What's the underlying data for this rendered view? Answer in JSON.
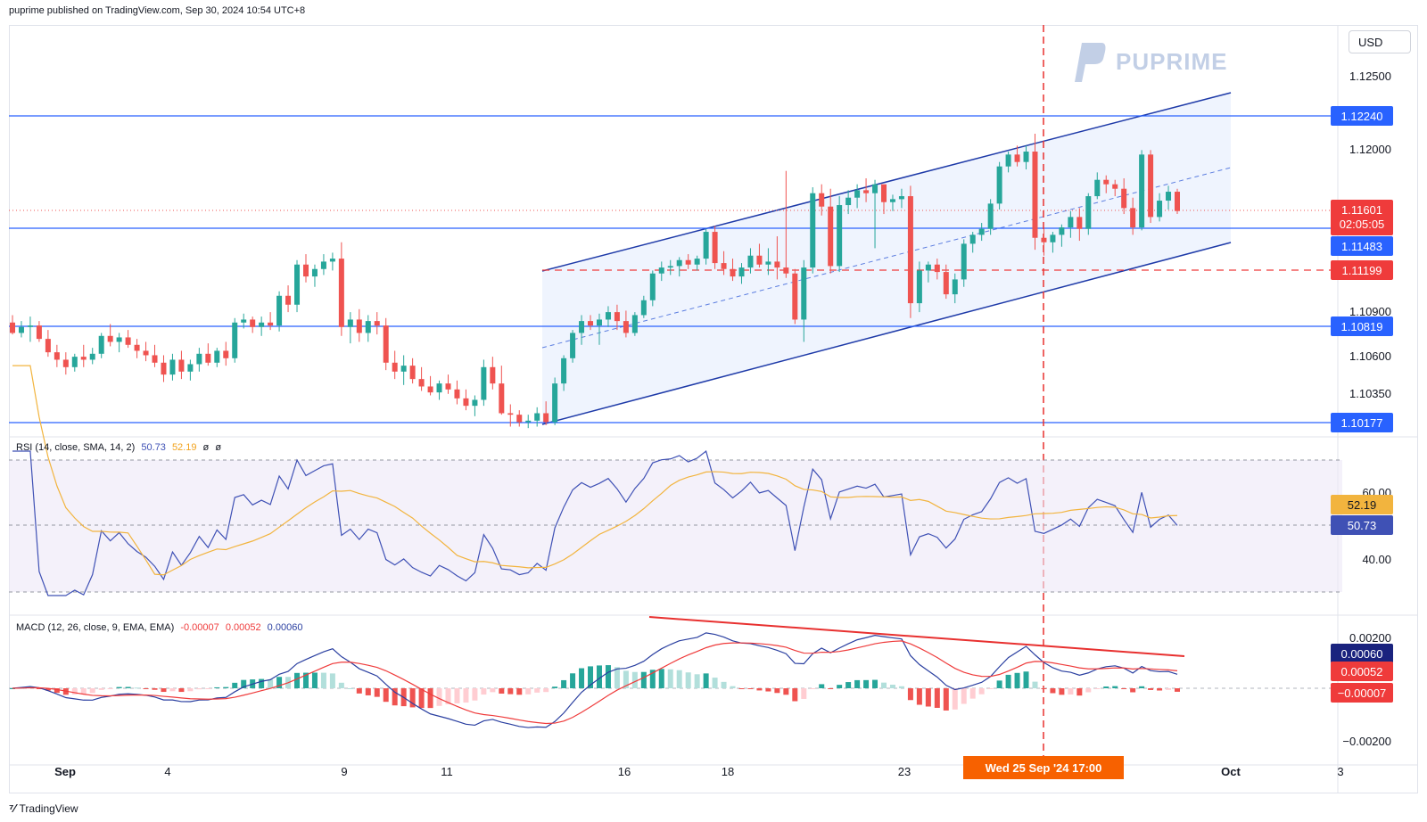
{
  "header": "puprime published on TradingView.com, Sep 30, 2024 10:54 UTC+8",
  "currency": "USD",
  "watermark": "PUPRIME",
  "footer": "TradingView",
  "price_axis": [
    "1.12500",
    "1.12000",
    "1.10900",
    "1.10600",
    "1.10350"
  ],
  "price_tags": {
    "r1": "1.12240",
    "last_price": "1.11601",
    "countdown": "02:05:05",
    "r2": "1.11483",
    "dashed": "1.11199",
    "s1": "1.10819",
    "s2": "1.10177"
  },
  "rsi": {
    "label": "RSI (14, close, SMA, 14, 2)",
    "v1": "50.73",
    "v2": "52.19",
    "v3": "ø",
    "v4": "ø",
    "axis": [
      "60.00",
      "40.00"
    ],
    "tag_sma": "52.19",
    "tag_rsi": "50.73"
  },
  "macd": {
    "label": "MACD (12, 26, close, 9, EMA, EMA)",
    "v1": "-0.00007",
    "v2": "0.00052",
    "v3": "0.00060",
    "axis": [
      "0.00200",
      "−0.00200"
    ],
    "tag_macd": "0.00060",
    "tag_signal": "0.00052",
    "tag_hist": "−0.00007"
  },
  "x_axis": [
    "Sep",
    "4",
    "9",
    "11",
    "16",
    "18",
    "23",
    "Oct",
    "3"
  ],
  "time_tag": "Wed 25 Sep '24   17:00",
  "colors": {
    "up": "#26a69a",
    "down": "#ef5350",
    "level": "#2962ff",
    "channel": "#1e3aa8",
    "orange": "#f76100",
    "rsi": "#3f51b5",
    "rsi_sma": "#f2b43e"
  },
  "chart_data": {
    "type": "candlestick",
    "symbol_currency": "USD",
    "horizontal_levels": [
      1.1224,
      1.11483,
      1.10819,
      1.10177
    ],
    "dashed_level": 1.11199,
    "last_price": 1.11601,
    "candles": [
      [
        1.1085,
        1.109,
        1.1077,
        1.1078
      ],
      [
        1.1078,
        1.1086,
        1.1075,
        1.1082
      ],
      [
        1.1082,
        1.1089,
        1.1072,
        1.1083
      ],
      [
        1.1083,
        1.1086,
        1.1072,
        1.1074
      ],
      [
        1.1074,
        1.108,
        1.1062,
        1.1065
      ],
      [
        1.1065,
        1.107,
        1.1055,
        1.106
      ],
      [
        1.106,
        1.1065,
        1.105,
        1.1055
      ],
      [
        1.1055,
        1.1064,
        1.1052,
        1.1062
      ],
      [
        1.1062,
        1.107,
        1.1055,
        1.106
      ],
      [
        1.106,
        1.1068,
        1.1057,
        1.1064
      ],
      [
        1.1064,
        1.1078,
        1.1061,
        1.1076
      ],
      [
        1.1076,
        1.1084,
        1.1069,
        1.1072
      ],
      [
        1.1072,
        1.1078,
        1.1065,
        1.1075
      ],
      [
        1.1075,
        1.108,
        1.1068,
        1.107
      ],
      [
        1.107,
        1.1074,
        1.1061,
        1.1066
      ],
      [
        1.1066,
        1.1072,
        1.1059,
        1.1063
      ],
      [
        1.1063,
        1.107,
        1.1055,
        1.1058
      ],
      [
        1.1058,
        1.1063,
        1.1045,
        1.105
      ],
      [
        1.105,
        1.1064,
        1.1046,
        1.106
      ],
      [
        1.106,
        1.1066,
        1.1047,
        1.1052
      ],
      [
        1.1052,
        1.106,
        1.1046,
        1.1057
      ],
      [
        1.1057,
        1.1068,
        1.1052,
        1.1064
      ],
      [
        1.1064,
        1.1071,
        1.1056,
        1.1058
      ],
      [
        1.1058,
        1.1068,
        1.1055,
        1.1066
      ],
      [
        1.1066,
        1.1072,
        1.1056,
        1.1061
      ],
      [
        1.1061,
        1.1088,
        1.1058,
        1.1085
      ],
      [
        1.1085,
        1.1091,
        1.1081,
        1.1087
      ],
      [
        1.1087,
        1.1089,
        1.1078,
        1.1082
      ],
      [
        1.1082,
        1.1089,
        1.1076,
        1.1085
      ],
      [
        1.1085,
        1.1092,
        1.108,
        1.1083
      ],
      [
        1.1083,
        1.1106,
        1.1079,
        1.1103
      ],
      [
        1.1103,
        1.111,
        1.1092,
        1.1097
      ],
      [
        1.1097,
        1.1127,
        1.1092,
        1.1124
      ],
      [
        1.1124,
        1.1131,
        1.1112,
        1.1116
      ],
      [
        1.1116,
        1.1124,
        1.1109,
        1.1121
      ],
      [
        1.1121,
        1.1131,
        1.1117,
        1.1126
      ],
      [
        1.1126,
        1.1132,
        1.112,
        1.1128
      ],
      [
        1.1128,
        1.1139,
        1.1076,
        1.1082
      ],
      [
        1.1082,
        1.1092,
        1.1071,
        1.1087
      ],
      [
        1.1087,
        1.1094,
        1.1072,
        1.1078
      ],
      [
        1.1078,
        1.109,
        1.1072,
        1.1086
      ],
      [
        1.1086,
        1.1092,
        1.1077,
        1.1083
      ],
      [
        1.1083,
        1.1088,
        1.1053,
        1.1058
      ],
      [
        1.1058,
        1.1066,
        1.1047,
        1.1052
      ],
      [
        1.1052,
        1.1063,
        1.1043,
        1.1056
      ],
      [
        1.1056,
        1.1061,
        1.1044,
        1.1047
      ],
      [
        1.1047,
        1.1055,
        1.1039,
        1.1042
      ],
      [
        1.1042,
        1.1049,
        1.1036,
        1.1038
      ],
      [
        1.1038,
        1.1046,
        1.1033,
        1.1044
      ],
      [
        1.1044,
        1.105,
        1.1037,
        1.104
      ],
      [
        1.104,
        1.1046,
        1.103,
        1.1034
      ],
      [
        1.1034,
        1.104,
        1.1026,
        1.1029
      ],
      [
        1.1029,
        1.1036,
        1.1022,
        1.1033
      ],
      [
        1.1033,
        1.106,
        1.1029,
        1.1055
      ],
      [
        1.1055,
        1.1062,
        1.104,
        1.1044
      ],
      [
        1.1044,
        1.1056,
        1.1023,
        1.1024
      ],
      [
        1.1024,
        1.103,
        1.1015,
        1.1023
      ],
      [
        1.1023,
        1.1026,
        1.1015,
        1.1018
      ],
      [
        1.1018,
        1.1023,
        1.1014,
        1.1019
      ],
      [
        1.1019,
        1.1028,
        1.1015,
        1.1024
      ],
      [
        1.1024,
        1.1032,
        1.1016,
        1.1018
      ],
      [
        1.1018,
        1.1048,
        1.1016,
        1.1044
      ],
      [
        1.1044,
        1.1063,
        1.1039,
        1.1061
      ],
      [
        1.1061,
        1.108,
        1.1058,
        1.1078
      ],
      [
        1.1078,
        1.109,
        1.107,
        1.1086
      ],
      [
        1.1086,
        1.109,
        1.108,
        1.1083
      ],
      [
        1.1083,
        1.1091,
        1.107,
        1.1087
      ],
      [
        1.1087,
        1.1096,
        1.1082,
        1.1092
      ],
      [
        1.1092,
        1.1097,
        1.108,
        1.1086
      ],
      [
        1.1086,
        1.1093,
        1.1075,
        1.1078
      ],
      [
        1.1078,
        1.1092,
        1.1076,
        1.109
      ],
      [
        1.109,
        1.1103,
        1.1088,
        1.11
      ],
      [
        1.11,
        1.112,
        1.1096,
        1.1118
      ],
      [
        1.1118,
        1.1126,
        1.1113,
        1.1122
      ],
      [
        1.1122,
        1.1127,
        1.1117,
        1.1123
      ],
      [
        1.1123,
        1.1129,
        1.1116,
        1.1127
      ],
      [
        1.1127,
        1.1131,
        1.1121,
        1.1124
      ],
      [
        1.1124,
        1.113,
        1.112,
        1.1128
      ],
      [
        1.1128,
        1.1148,
        1.1124,
        1.1146
      ],
      [
        1.1146,
        1.115,
        1.1121,
        1.1125
      ],
      [
        1.1125,
        1.1133,
        1.1117,
        1.1121
      ],
      [
        1.1121,
        1.1128,
        1.1113,
        1.1116
      ],
      [
        1.1116,
        1.1125,
        1.1111,
        1.1122
      ],
      [
        1.1122,
        1.1135,
        1.1118,
        1.113
      ],
      [
        1.113,
        1.1138,
        1.1122,
        1.1124
      ],
      [
        1.1124,
        1.1135,
        1.1117,
        1.1126
      ],
      [
        1.1126,
        1.1143,
        1.1114,
        1.1122
      ],
      [
        1.1122,
        1.1187,
        1.1115,
        1.1118
      ],
      [
        1.1118,
        1.1121,
        1.1084,
        1.1087
      ],
      [
        1.1087,
        1.1127,
        1.1072,
        1.1122
      ],
      [
        1.1122,
        1.1176,
        1.1118,
        1.1172
      ],
      [
        1.1172,
        1.1178,
        1.1157,
        1.1163
      ],
      [
        1.1163,
        1.1175,
        1.1118,
        1.1123
      ],
      [
        1.1123,
        1.117,
        1.1119,
        1.1164
      ],
      [
        1.1164,
        1.1174,
        1.1158,
        1.1169
      ],
      [
        1.1169,
        1.1178,
        1.1162,
        1.1174
      ],
      [
        1.1174,
        1.1182,
        1.1166,
        1.1172
      ],
      [
        1.1172,
        1.1181,
        1.1135,
        1.1178
      ],
      [
        1.1178,
        1.1177,
        1.1158,
        1.1166
      ],
      [
        1.1166,
        1.1171,
        1.116,
        1.1168
      ],
      [
        1.1168,
        1.1175,
        1.1162,
        1.117
      ],
      [
        1.117,
        1.1177,
        1.1088,
        1.1098
      ],
      [
        1.1098,
        1.1126,
        1.1092,
        1.112
      ],
      [
        1.112,
        1.1126,
        1.1112,
        1.1124
      ],
      [
        1.1124,
        1.1128,
        1.1114,
        1.1119
      ],
      [
        1.1119,
        1.1124,
        1.1101,
        1.1104
      ],
      [
        1.1104,
        1.1118,
        1.1098,
        1.1114
      ],
      [
        1.1114,
        1.1141,
        1.1109,
        1.1138
      ],
      [
        1.1138,
        1.1146,
        1.1132,
        1.1144
      ],
      [
        1.1144,
        1.1152,
        1.114,
        1.1148
      ],
      [
        1.1148,
        1.1168,
        1.1144,
        1.1165
      ],
      [
        1.1165,
        1.1193,
        1.1161,
        1.119
      ],
      [
        1.119,
        1.12,
        1.1186,
        1.1198
      ],
      [
        1.1198,
        1.1204,
        1.119,
        1.1193
      ],
      [
        1.1193,
        1.1204,
        1.1188,
        1.12
      ],
      [
        1.12,
        1.1212,
        1.1134,
        1.1142
      ],
      [
        1.1142,
        1.1148,
        1.113,
        1.1139
      ],
      [
        1.1139,
        1.1146,
        1.1132,
        1.1144
      ],
      [
        1.1144,
        1.1151,
        1.1136,
        1.1149
      ],
      [
        1.1149,
        1.116,
        1.1142,
        1.1156
      ],
      [
        1.1156,
        1.1162,
        1.114,
        1.1148
      ],
      [
        1.1148,
        1.1172,
        1.1144,
        1.117
      ],
      [
        1.117,
        1.1186,
        1.1168,
        1.1181
      ],
      [
        1.1181,
        1.1184,
        1.1172,
        1.1178
      ],
      [
        1.1178,
        1.1181,
        1.117,
        1.1175
      ],
      [
        1.1175,
        1.1182,
        1.1158,
        1.1162
      ],
      [
        1.1162,
        1.1169,
        1.1144,
        1.1149
      ],
      [
        1.1149,
        1.1201,
        1.1147,
        1.1198
      ],
      [
        1.1198,
        1.1201,
        1.1152,
        1.1156
      ],
      [
        1.1156,
        1.1172,
        1.1153,
        1.1167
      ],
      [
        1.1167,
        1.1177,
        1.1161,
        1.1173
      ],
      [
        1.1173,
        1.1175,
        1.1158,
        1.116
      ]
    ]
  }
}
